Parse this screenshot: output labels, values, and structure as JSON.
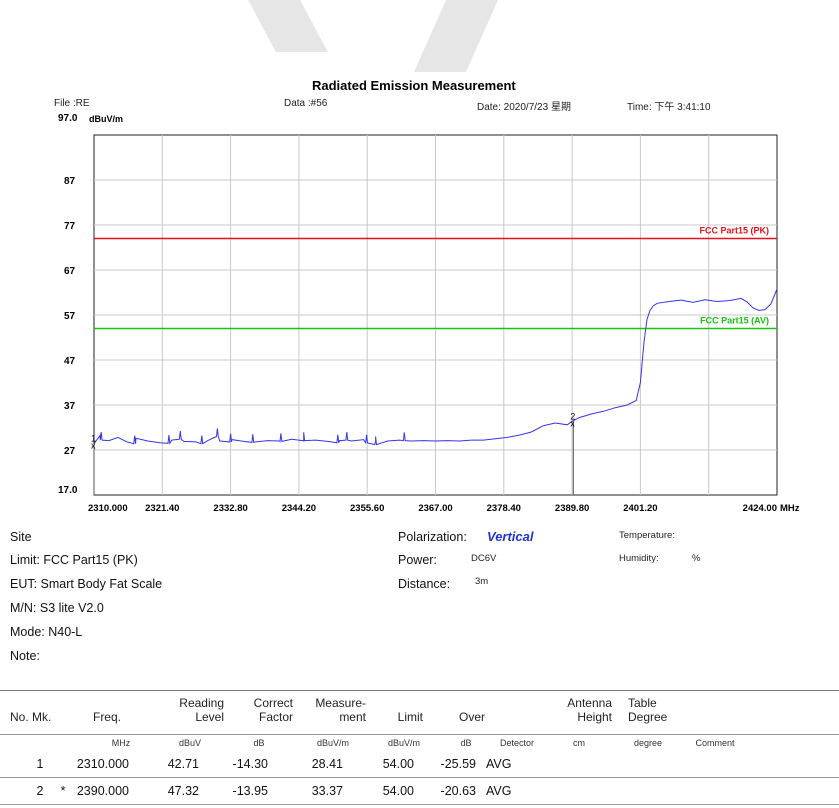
{
  "report": {
    "title": "Radiated Emission Measurement",
    "file": "File :RE",
    "data_no": "Data :#56",
    "date": "Date: 2020/7/23 星期",
    "time": "Time: 下午 3:41:10",
    "y_top_label": "97.0",
    "y_unit": "dBuV/m",
    "x_unit": "MHz"
  },
  "chart_data": {
    "type": "line",
    "title": "Radiated Emission Measurement",
    "xlabel": "MHz",
    "ylabel": "dBuV/m",
    "xlim": [
      2310.0,
      2424.0
    ],
    "ylim": [
      17.0,
      97.0
    ],
    "x_ticks": [
      "2310.000",
      "2321.40",
      "2332.80",
      "2344.20",
      "2355.60",
      "2367.00",
      "2378.40",
      "2389.80",
      "2401.20",
      "2424.00"
    ],
    "y_ticks": [
      "97.0",
      "87",
      "77",
      "67",
      "57",
      "47",
      "37",
      "27",
      "17.0"
    ],
    "y_tick_values": [
      87,
      77,
      67,
      57,
      47,
      37,
      27
    ],
    "grid": true,
    "limits": [
      {
        "name": "FCC Part15 (PK)",
        "y": 74.0,
        "color": "#e8101a"
      },
      {
        "name": "FCC Part15 (AV)",
        "y": 54.0,
        "color": "#16c40f"
      }
    ],
    "series": [
      {
        "color": "#3535e8",
        "x": [
          2310.0,
          2311.0,
          2312.5,
          2314.0,
          2315.5,
          2317.0,
          2319.0,
          2321.0,
          2323.0,
          2325.0,
          2327.0,
          2329.0,
          2331.0,
          2333.0,
          2335.0,
          2337.0,
          2339.0,
          2341.0,
          2343.0,
          2345.0,
          2347.0,
          2349.0,
          2351.0,
          2353.0,
          2355.0,
          2357.0,
          2359.0,
          2361.0,
          2363.0,
          2365.0,
          2367.0,
          2369.0,
          2371.0,
          2373.0,
          2375.0,
          2377.0,
          2379.0,
          2381.0,
          2383.0,
          2385.0,
          2387.0,
          2389.0,
          2389.8,
          2391.0,
          2393.0,
          2395.0,
          2397.0,
          2399.0,
          2400.5,
          2401.2,
          2401.8,
          2402.3,
          2402.8,
          2403.3,
          2404.0,
          2406.0,
          2408.0,
          2410.0,
          2412.0,
          2414.0,
          2416.0,
          2418.0,
          2419.0,
          2420.0,
          2421.0,
          2422.0,
          2423.0,
          2424.0
        ],
        "y": [
          28.4,
          30.2,
          29.1,
          29.8,
          28.8,
          29.6,
          29.0,
          28.6,
          29.2,
          28.9,
          28.8,
          29.1,
          29.0,
          29.3,
          28.9,
          28.8,
          29.1,
          29.0,
          29.4,
          29.0,
          29.2,
          28.9,
          29.1,
          29.0,
          29.3,
          28.9,
          29.0,
          29.2,
          29.0,
          29.1,
          29.0,
          29.1,
          29.0,
          29.2,
          29.2,
          29.5,
          29.8,
          30.3,
          31.0,
          32.4,
          33.0,
          32.6,
          33.4,
          34.2,
          35.0,
          35.6,
          36.4,
          37.0,
          38.0,
          42.0,
          51.0,
          56.0,
          58.0,
          59.0,
          59.6,
          60.0,
          60.3,
          59.8,
          60.4,
          60.0,
          60.2,
          60.7,
          59.9,
          58.6,
          58.0,
          58.2,
          59.5,
          62.8
        ],
        "spikes": [
          {
            "x": 2311.2,
            "y": 31.0
          },
          {
            "x": 2316.8,
            "y": 30.2
          },
          {
            "x": 2322.5,
            "y": 30.3
          },
          {
            "x": 2324.4,
            "y": 31.2
          },
          {
            "x": 2328.0,
            "y": 30.2
          },
          {
            "x": 2330.6,
            "y": 31.8
          },
          {
            "x": 2332.8,
            "y": 30.6
          },
          {
            "x": 2336.5,
            "y": 30.5
          },
          {
            "x": 2341.2,
            "y": 30.7
          },
          {
            "x": 2345.0,
            "y": 30.9
          },
          {
            "x": 2350.7,
            "y": 30.4
          },
          {
            "x": 2352.2,
            "y": 31.0
          },
          {
            "x": 2355.5,
            "y": 30.4
          },
          {
            "x": 2357.0,
            "y": 30.0
          },
          {
            "x": 2361.8,
            "y": 30.9
          }
        ]
      }
    ],
    "markers": [
      {
        "label": "1",
        "x": 2310.0,
        "y": 28.41
      },
      {
        "label": "2",
        "x": 2390.0,
        "y": 33.37
      }
    ]
  },
  "info": {
    "site": "Site",
    "limit": "Limit: FCC Part15 (PK)",
    "eut": "EUT:  Smart Body Fat Scale",
    "mn": "M/N:  S3 lite V2.0",
    "mode": "Mode:  N40-L",
    "note": "Note:",
    "polarization_label": "Polarization:",
    "polarization_value": "Vertical",
    "power_label": "Power:",
    "power_value": "DC6V",
    "distance_label": "Distance:",
    "distance_value": "3m",
    "temperature": "Temperature:",
    "humidity": "Humidity:",
    "humidity_unit": "%"
  },
  "table": {
    "headers": [
      [
        "No. Mk."
      ],
      [
        "Freq."
      ],
      [
        "Reading",
        "Level"
      ],
      [
        "Correct",
        "Factor"
      ],
      [
        "Measure-",
        "ment"
      ],
      [
        "Limit"
      ],
      [
        "Over"
      ],
      [
        ""
      ],
      [
        "Antenna",
        "Height"
      ],
      [
        "Table",
        "Degree"
      ]
    ],
    "units": [
      "MHz",
      "dBuV",
      "dB",
      "dBuV/m",
      "dBuV/m",
      "dB",
      "Detector",
      "cm",
      "degree",
      "Comment"
    ],
    "rows": [
      [
        "1",
        "",
        "2310.000",
        "42.71",
        "-14.30",
        "28.41",
        "54.00",
        "-25.59",
        "AVG"
      ],
      [
        "2",
        "*",
        "2390.000",
        "47.32",
        "-13.95",
        "33.37",
        "54.00",
        "-20.63",
        "AVG"
      ]
    ]
  }
}
